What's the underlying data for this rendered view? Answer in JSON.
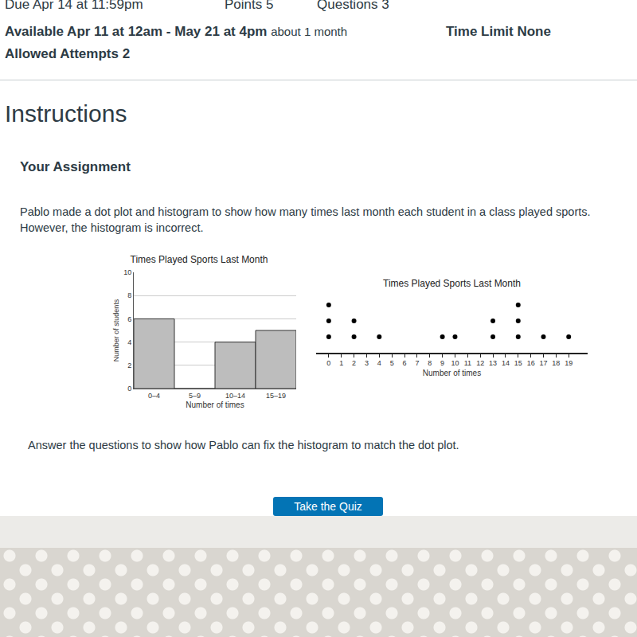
{
  "page": {
    "header": {
      "due": "Due Apr 14 at 11:59pm",
      "points": "Points 5",
      "questions": "Questions 3",
      "available": "Available Apr 11 at 12am - May 21 at 4pm",
      "available_note": "about 1 month",
      "time_limit": "Time Limit None",
      "attempts": "Allowed Attempts 2"
    },
    "heading": "Instructions",
    "subheading": "Your Assignment",
    "prompt": "Pablo made a dot plot and histogram to show how many times last month each student in a class played sports. However, the histogram is incorrect.",
    "question": "Answer the questions to show how Pablo can fix the histogram to match the dot plot.",
    "button": "Take the Quiz"
  },
  "chart_data": [
    {
      "type": "bar",
      "title": "Times Played Sports Last Month",
      "categories": [
        "0–4",
        "5–9",
        "10–14",
        "15–19"
      ],
      "values": [
        6,
        0,
        4,
        5
      ],
      "color": "#bdbdbd",
      "ylim": [
        0,
        10
      ],
      "yticks": [
        0,
        2,
        4,
        6,
        8,
        10
      ],
      "grid": true,
      "x_label": "Number of times",
      "y_label": "Number of students"
    },
    {
      "type": "dot",
      "title": "Times Played Sports Last Month",
      "x": [
        0,
        2,
        4,
        9,
        10,
        13,
        15,
        17,
        19
      ],
      "values": [
        3,
        2,
        1,
        1,
        1,
        2,
        3,
        1,
        1
      ],
      "color": "#000000",
      "xlim": [
        -1,
        20.5
      ],
      "xticks": [
        0,
        1,
        2,
        3,
        4,
        5,
        6,
        7,
        8,
        9,
        10,
        11,
        12,
        13,
        14,
        15,
        16,
        17,
        18,
        19
      ],
      "tick_labels": "x",
      "x_label": "Number of times"
    }
  ]
}
